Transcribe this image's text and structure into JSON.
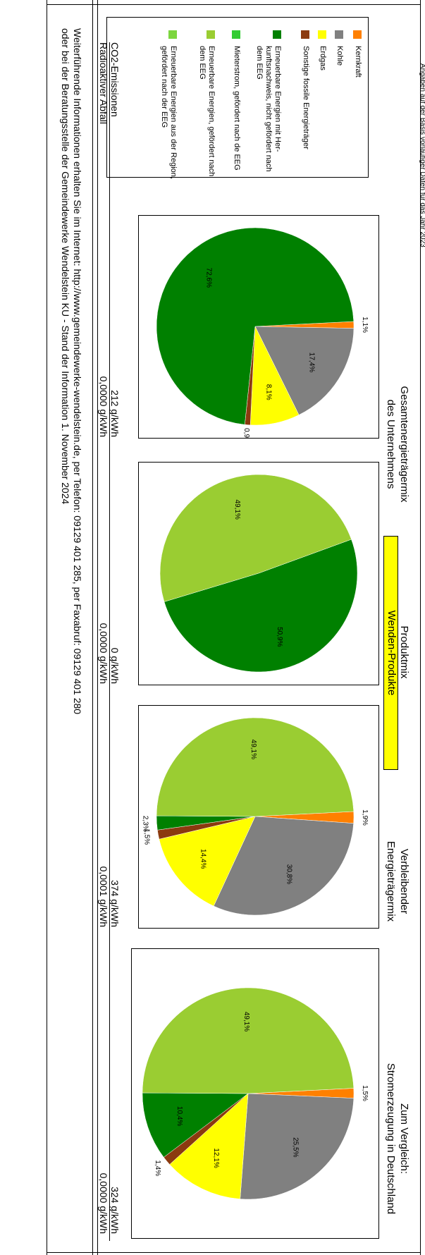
{
  "header_note": "Angaben auf der Basis vorläufiger Daten für das Jahr 2023",
  "columns": [
    {
      "line1": "Gesamtenergieträgermix",
      "line2": "des Unternehmens"
    },
    {
      "line1": "Produktmix",
      "line2": "Wenden-Produkte"
    },
    {
      "line1": "Verbleibender",
      "line2": "Energieträgermix"
    },
    {
      "line1": "Zum Vergleich:",
      "line2": "Stromerzeugung in Deutschland"
    }
  ],
  "colors": {
    "kernkraft": "#ff8000",
    "kohle": "#808080",
    "erdgas": "#ffff00",
    "fossil": "#8b3a0f",
    "ee_herkunft": "#008000",
    "mieterstrom": "#33cc33",
    "ee_eeg": "#9acd32",
    "ee_region": "#7cd63f"
  },
  "legend": [
    {
      "key": "kernkraft",
      "label": "Kernkraft"
    },
    {
      "key": "kohle",
      "label": "Kohle"
    },
    {
      "key": "erdgas",
      "label": "Erdgas"
    },
    {
      "key": "fossil",
      "label": "Sonstige fossile Energieträger"
    },
    {
      "key": "ee_herkunft",
      "label": "Erneuerbare Energien mit Her-kunftsnachweis, nicht gefördert nach dem EEG"
    },
    {
      "key": "mieterstrom",
      "label": "Mieterstrom, gefördert nach de EEG"
    },
    {
      "key": "ee_eeg",
      "label": "Erneuerbare Energien, gefördert nach dem EEG"
    },
    {
      "key": "ee_region",
      "label": "Erneuerbare Energien aus der Region, gefördert nach der EEG"
    }
  ],
  "chart_data": [
    {
      "type": "pie",
      "title": "Gesamtenergieträgermix des Unternehmens",
      "slices": [
        {
          "key": "kernkraft",
          "value": 1.1,
          "label": "1,1%"
        },
        {
          "key": "kohle",
          "value": 17.4,
          "label": "17,4%"
        },
        {
          "key": "erdgas",
          "value": 8.1,
          "label": "8,1%"
        },
        {
          "key": "fossil",
          "value": 0.9,
          "label": "0,9%"
        },
        {
          "key": "ee_herkunft",
          "value": 72.6,
          "label": "72,6%"
        }
      ]
    },
    {
      "type": "pie",
      "title": "Produktmix Wenden-Produkte",
      "slices": [
        {
          "key": "ee_herkunft",
          "value": 50.9,
          "label": "50,9%"
        },
        {
          "key": "ee_eeg",
          "value": 49.1,
          "label": "49,1%"
        }
      ]
    },
    {
      "type": "pie",
      "title": "Verbleibender Energieträgermix",
      "slices": [
        {
          "key": "kernkraft",
          "value": 1.9,
          "label": "1,9%"
        },
        {
          "key": "kohle",
          "value": 30.8,
          "label": "30,8%"
        },
        {
          "key": "erdgas",
          "value": 14.4,
          "label": "14,4%"
        },
        {
          "key": "fossil",
          "value": 1.5,
          "label": "1,5%"
        },
        {
          "key": "ee_herkunft",
          "value": 2.3,
          "label": "2,3%"
        },
        {
          "key": "ee_eeg",
          "value": 49.1,
          "label": "49,1%"
        }
      ]
    },
    {
      "type": "pie",
      "title": "Zum Vergleich: Stromerzeugung in Deutschland",
      "slices": [
        {
          "key": "kernkraft",
          "value": 1.5,
          "label": "1,5%"
        },
        {
          "key": "kohle",
          "value": 25.5,
          "label": "25,5%"
        },
        {
          "key": "erdgas",
          "value": 12.1,
          "label": "12,1%"
        },
        {
          "key": "fossil",
          "value": 1.4,
          "label": "1,4%"
        },
        {
          "key": "ee_herkunft",
          "value": 10.4,
          "label": "10,4%"
        },
        {
          "key": "ee_eeg",
          "value": 49.1,
          "label": "49,1%"
        }
      ]
    }
  ],
  "emissions": {
    "co2_label": "CO2-Emissionen",
    "waste_label": "Radioaktiver Abfall",
    "co2": [
      "212 g/kWh",
      "0 g/kWh",
      "374 g/kWh",
      "324 g/kWh"
    ],
    "waste": [
      "0,0000 g/kWh",
      "0,0000 g/kWh",
      "0,0001 g/kWh",
      "0,0000 g/kWh"
    ]
  },
  "footer": {
    "line1": "Weiterführende Informationen erhalten Sie im Internet: http://www.gemeindewerke-wendelstein.de, per Telefon: 09129 401 285, per Faxabruf: 09129 401 280",
    "line2": "oder bei der Beratungsstelle der Gemeindewerke Wendelstein KU - Stand der Information 1. November 2024"
  }
}
